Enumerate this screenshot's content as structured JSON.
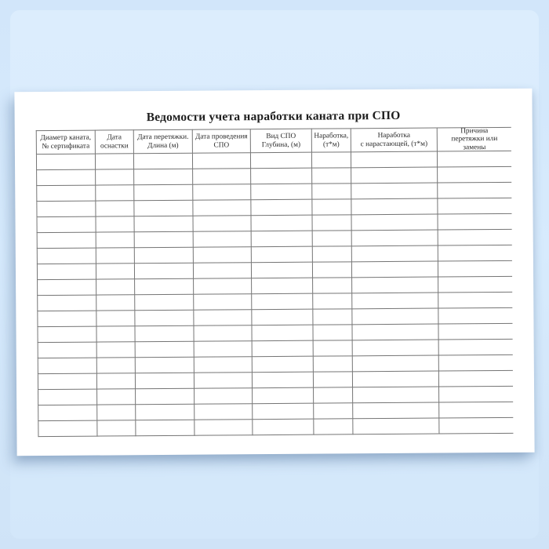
{
  "document": {
    "title": "Ведомости учета наработки каната при СПО",
    "table": {
      "columns": [
        {
          "id": "rope-diameter-certificate",
          "label": "Диаметр каната,\n№ сертификата"
        },
        {
          "id": "rigging-date",
          "label": "Дата\nоснастки"
        },
        {
          "id": "re-reeving-date-length",
          "label": "Дата перетяжки.\nДлина (м)"
        },
        {
          "id": "spo-date",
          "label": "Дата проведения\nСПО"
        },
        {
          "id": "spo-type-depth",
          "label": "Вид СПО\nГлубина, (м)"
        },
        {
          "id": "operating-time",
          "label": "Наработка,\n(т*м)"
        },
        {
          "id": "operating-time-cumulative",
          "label": "Наработка\nс нарастающей, (т*м)"
        },
        {
          "id": "reason-replacement",
          "label": "Причина\nперетяжки или\nзамены"
        }
      ],
      "row_count": 18,
      "empty_cell_value": ""
    }
  },
  "colors": {
    "background_top": "#d2e6fa",
    "background_bottom": "#cfe3f7",
    "frame_inner": "#dcedfd",
    "paper": "#ffffff",
    "grid_line": "#757575",
    "title_text": "#1e1e1e",
    "header_text": "#2b2b2b"
  }
}
